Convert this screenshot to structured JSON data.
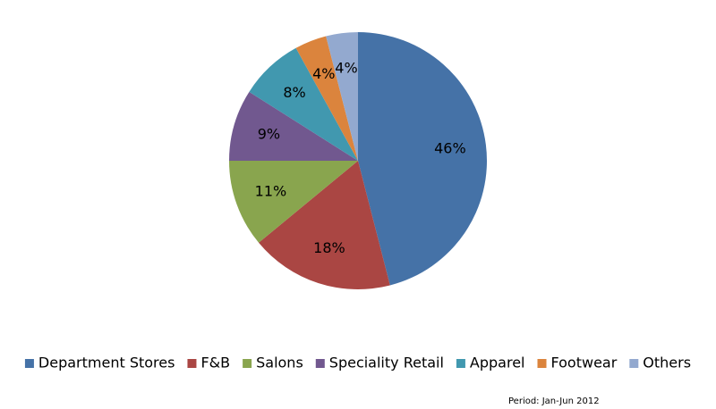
{
  "chart_data": {
    "type": "pie",
    "categories": [
      "Department Stores",
      "F&B",
      "Salons",
      "Speciality Retail",
      "Apparel",
      "Footwear",
      "Others"
    ],
    "values": [
      46,
      18,
      11,
      9,
      8,
      4,
      4
    ],
    "value_labels": [
      "46%",
      "18%",
      "11%",
      "9%",
      "8%",
      "4%",
      "4%"
    ],
    "colors": [
      "#4572a7",
      "#aa4643",
      "#89a54e",
      "#71588f",
      "#4198af",
      "#db843d",
      "#93a9cf"
    ],
    "legend": "bottom",
    "footnote": "Period: Jan-Jun 2012"
  }
}
